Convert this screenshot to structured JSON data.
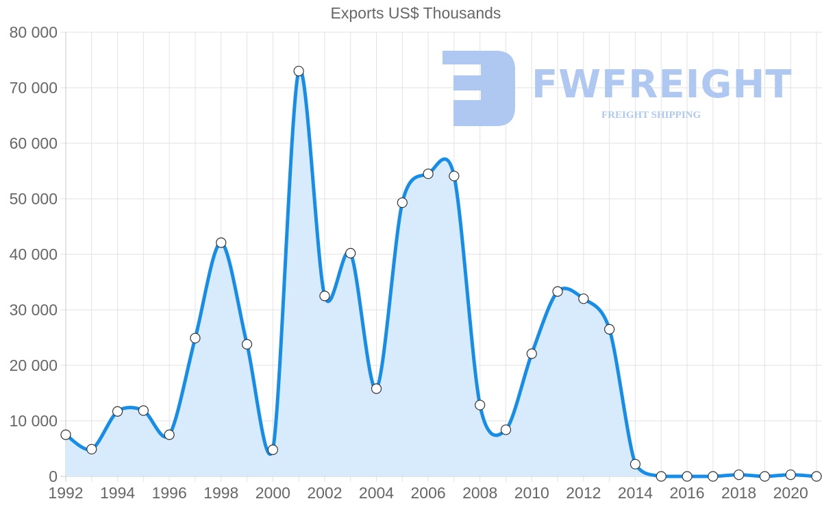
{
  "chart_data": {
    "type": "line",
    "title": "Exports US$ Thousands",
    "xlabel": "",
    "ylabel": "",
    "x": [
      1992,
      1993,
      1994,
      1995,
      1996,
      1997,
      1998,
      1999,
      2000,
      2001,
      2002,
      2003,
      2004,
      2005,
      2006,
      2007,
      2008,
      2009,
      2010,
      2011,
      2012,
      2013,
      2014,
      2015,
      2016,
      2017,
      2018,
      2019,
      2020,
      2021
    ],
    "series": [
      {
        "name": "Exports US$ Thousands",
        "values": [
          7500,
          4900,
          11700,
          11850,
          7500,
          24900,
          42100,
          23800,
          4800,
          73000,
          32500,
          40200,
          15800,
          49300,
          54500,
          54100,
          12850,
          8400,
          22100,
          33300,
          32000,
          26500,
          2200,
          0,
          0,
          0,
          300,
          0,
          300,
          0
        ],
        "color": "#168de9",
        "fill": "#d8ebfc",
        "marker": "circle"
      }
    ],
    "ylim": [
      0,
      80000
    ],
    "yticks": [
      0,
      10000,
      20000,
      30000,
      40000,
      50000,
      60000,
      70000,
      80000
    ],
    "ytick_labels": [
      "0",
      "10 000",
      "20 000",
      "30 000",
      "40 000",
      "50 000",
      "60 000",
      "70 000",
      "80 000"
    ],
    "xtick_labels": [
      "1992",
      "1994",
      "1996",
      "1998",
      "2000",
      "2002",
      "2004",
      "2006",
      "2008",
      "2010",
      "2012",
      "2014",
      "2016",
      "2018",
      "2020"
    ],
    "grid": true,
    "legend": "none"
  },
  "watermark": {
    "name": "FWFREIGHT",
    "tagline": "FREIGHT SHIPPING",
    "color": "#afc8f2"
  }
}
